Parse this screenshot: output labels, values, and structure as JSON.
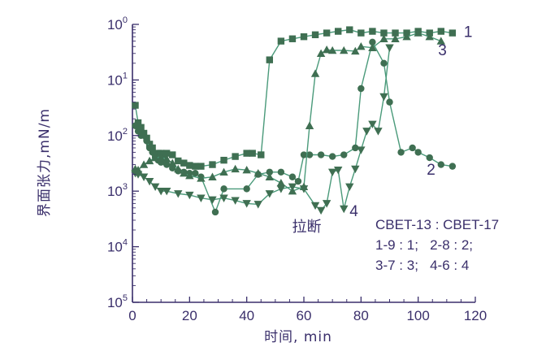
{
  "chart_data": {
    "type": "line",
    "xlabel": "时间, min",
    "ylabel": "界面张力,mN/m",
    "xlim": [
      0,
      120
    ],
    "x_ticks": [
      "0",
      "20",
      "40",
      "60",
      "80",
      "100",
      "120"
    ],
    "x_tick_values": [
      0,
      20,
      40,
      60,
      80,
      100,
      120
    ],
    "y_scale": "log",
    "ylim": [
      1e-05,
      1
    ],
    "y_ticks": [
      {
        "value": 1,
        "base": "10",
        "exp": "0"
      },
      {
        "value": 0.1,
        "base": "10",
        "exp": "1"
      },
      {
        "value": 0.01,
        "base": "10",
        "exp": "2"
      },
      {
        "value": 0.001,
        "base": "10",
        "exp": "3"
      },
      {
        "value": 0.0001,
        "base": "10",
        "exp": "4"
      },
      {
        "value": 1e-05,
        "base": "10",
        "exp": "5"
      }
    ],
    "annotation": "拉断",
    "annotation_point": {
      "x": 61,
      "y": 0.00045
    },
    "legend_title": "CBET-13 : CBET-17",
    "legend_lines": [
      "1-9 : 1;   2-8 : 2;",
      "3-7 : 3;   4-6 : 4"
    ],
    "grid": false,
    "series": [
      {
        "name": "1",
        "marker": "square",
        "x": [
          1,
          2,
          3,
          4,
          5,
          6,
          7,
          8,
          9,
          10,
          11,
          12,
          14,
          16,
          18,
          20,
          22,
          24,
          28,
          32,
          36,
          40,
          42,
          45,
          48,
          52,
          56,
          60,
          64,
          68,
          72,
          76,
          80,
          84,
          88,
          92,
          96,
          100,
          104,
          108,
          112
        ],
        "y": [
          0.035,
          0.017,
          0.014,
          0.011,
          0.009,
          0.007,
          0.006,
          0.0045,
          0.0048,
          0.0048,
          0.0044,
          0.0048,
          0.0045,
          0.0035,
          0.0032,
          0.0029,
          0.0028,
          0.0028,
          0.003,
          0.0036,
          0.0042,
          0.0048,
          0.0048,
          0.0045,
          0.23,
          0.5,
          0.55,
          0.6,
          0.65,
          0.7,
          0.75,
          0.8,
          0.7,
          0.75,
          0.7,
          0.7,
          0.7,
          0.75,
          0.7,
          0.75,
          0.7
        ]
      },
      {
        "name": "2",
        "marker": "circle",
        "x": [
          1,
          2,
          3,
          4,
          5,
          6,
          7,
          8,
          9,
          10,
          12,
          14,
          16,
          18,
          20,
          22,
          24,
          29,
          32,
          40,
          44,
          48,
          52,
          56,
          58,
          60,
          62,
          66,
          70,
          74,
          78,
          80,
          84,
          88,
          90,
          94,
          98,
          100,
          104,
          108,
          112
        ],
        "y": [
          0.015,
          0.012,
          0.01,
          0.01,
          0.008,
          0.006,
          0.005,
          0.004,
          0.0036,
          0.0033,
          0.003,
          0.0026,
          0.0023,
          0.0022,
          0.0021,
          0.0021,
          0.0018,
          0.00042,
          0.0011,
          0.0011,
          0.002,
          0.0022,
          0.0022,
          0.0018,
          0.0015,
          0.0045,
          0.0045,
          0.0045,
          0.0042,
          0.0045,
          0.006,
          0.07,
          0.48,
          0.2,
          0.04,
          0.005,
          0.006,
          0.005,
          0.004,
          0.003,
          0.0028
        ]
      },
      {
        "name": "3",
        "marker": "triangle",
        "x": [
          1,
          2,
          4,
          6,
          8,
          10,
          12,
          14,
          16,
          18,
          20,
          24,
          28,
          32,
          36,
          40,
          44,
          48,
          52,
          56,
          60,
          62,
          64,
          66,
          68,
          70,
          74,
          78,
          80,
          84,
          88,
          92,
          96,
          100,
          104,
          108
        ],
        "y": [
          0.0025,
          0.0024,
          0.003,
          0.0035,
          0.004,
          0.004,
          0.0038,
          0.0032,
          0.0025,
          0.0021,
          0.0019,
          0.0017,
          0.0018,
          0.0022,
          0.0025,
          0.0024,
          0.0021,
          0.0018,
          0.0014,
          0.001,
          0.0012,
          0.015,
          0.13,
          0.3,
          0.35,
          0.34,
          0.34,
          0.33,
          0.4,
          0.38,
          0.55,
          0.55,
          0.6,
          0.7,
          0.6,
          0.5
        ]
      },
      {
        "name": "4",
        "marker": "triangle-down",
        "x": [
          1,
          2,
          4,
          6,
          8,
          10,
          12,
          16,
          20,
          24,
          28,
          32,
          36,
          40,
          44,
          48,
          52,
          56,
          60,
          64,
          66,
          68,
          70,
          72,
          74,
          76,
          78,
          80,
          82,
          84,
          86,
          88,
          90
        ],
        "y": [
          0.0021,
          0.002,
          0.0018,
          0.0015,
          0.0012,
          0.001,
          0.001,
          0.0009,
          0.00085,
          0.00075,
          0.0007,
          0.00075,
          0.00068,
          0.0006,
          0.00058,
          0.0009,
          0.0011,
          0.0012,
          0.0011,
          0.00055,
          0.00045,
          0.0006,
          0.0022,
          0.0024,
          0.00048,
          0.0012,
          0.0025,
          0.0055,
          0.012,
          0.016,
          0.012,
          0.05,
          0.38
        ]
      }
    ],
    "series_labels": [
      {
        "text": "1",
        "x": 116,
        "y": 0.75
      },
      {
        "text": "2",
        "x": 103,
        "y": 0.0025
      },
      {
        "text": "3",
        "x": 107,
        "y": 0.35
      },
      {
        "text": "4",
        "x": 76,
        "y": 0.00045
      }
    ]
  },
  "colors": {
    "line": "#4a9a7a",
    "marker": "#3f6f52",
    "axis": "#3a2f6b",
    "text": "#3a2f6b"
  }
}
